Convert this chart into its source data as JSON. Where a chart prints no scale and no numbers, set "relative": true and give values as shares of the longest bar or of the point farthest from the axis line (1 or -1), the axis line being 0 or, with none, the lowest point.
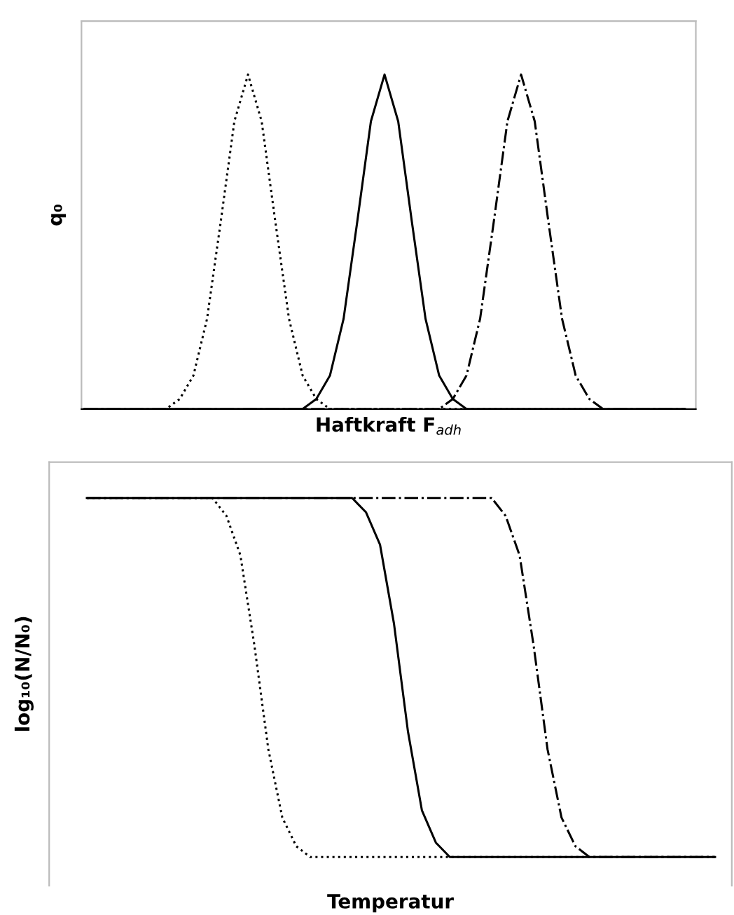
{
  "chart_data": [
    {
      "type": "line",
      "relative": true,
      "ylabel": "q₀",
      "xlabel": "Haftkraft F$_{adh}$",
      "tick_labels": false,
      "marker": "none",
      "categories": [
        null,
        null,
        null,
        null,
        null,
        null,
        null,
        null,
        null,
        null,
        null,
        null,
        null,
        null,
        null,
        null,
        null,
        null,
        null,
        null,
        null,
        null,
        null,
        null,
        null,
        null,
        null,
        null,
        null,
        null,
        null,
        null,
        null,
        null,
        null,
        null,
        null,
        null,
        null,
        null,
        null,
        null,
        null,
        null,
        null
      ],
      "series": [
        {
          "color": "#000000",
          "line_style": "dotted",
          "values": [
            0,
            0,
            0,
            0,
            0,
            0,
            0,
            0.03,
            0.1,
            0.27,
            0.56,
            0.86,
            1,
            0.86,
            0.56,
            0.27,
            0.1,
            0.03,
            0,
            0,
            0,
            0,
            0,
            0,
            0,
            0,
            0,
            0,
            0,
            0,
            0,
            0,
            0,
            0,
            0,
            0,
            0,
            0,
            0,
            0,
            0,
            0,
            0,
            0,
            0
          ]
        },
        {
          "color": "#000000",
          "line_style": "solid",
          "values": [
            0,
            0,
            0,
            0,
            0,
            0,
            0,
            0,
            0,
            0,
            0,
            0,
            0,
            0,
            0,
            0,
            0,
            0.03,
            0.1,
            0.27,
            0.56,
            0.86,
            1,
            0.86,
            0.56,
            0.27,
            0.1,
            0.03,
            0,
            0,
            0,
            0,
            0,
            0,
            0,
            0,
            0,
            0,
            0,
            0,
            0,
            0,
            0,
            0,
            0
          ]
        },
        {
          "color": "#000000",
          "line_style": "dashed",
          "values": [
            0,
            0,
            0,
            0,
            0,
            0,
            0,
            0,
            0,
            0,
            0,
            0,
            0,
            0,
            0,
            0,
            0,
            0,
            0,
            0,
            0,
            0,
            0,
            0,
            0,
            0,
            0,
            0.03,
            0.1,
            0.27,
            0.56,
            0.86,
            1,
            0.86,
            0.56,
            0.27,
            0.1,
            0.03,
            0,
            0,
            0,
            0,
            0,
            0,
            0
          ]
        }
      ]
    },
    {
      "type": "line",
      "relative": true,
      "ylabel": "log₁₀(N/N₀)",
      "xlabel": "Temperatur",
      "tick_labels": false,
      "marker": "none",
      "categories": [
        null,
        null,
        null,
        null,
        null,
        null,
        null,
        null,
        null,
        null,
        null,
        null,
        null,
        null,
        null,
        null,
        null,
        null,
        null,
        null,
        null,
        null,
        null,
        null,
        null,
        null,
        null,
        null,
        null,
        null,
        null,
        null,
        null,
        null,
        null,
        null,
        null,
        null,
        null,
        null,
        null,
        null,
        null,
        null,
        null,
        null
      ],
      "series": [
        {
          "color": "#000000",
          "line_style": "dotted",
          "values": [
            1,
            1,
            1,
            1,
            1,
            1,
            1,
            1,
            1,
            1,
            0.95,
            0.84,
            0.59,
            0.3,
            0.11,
            0.03,
            0,
            0,
            0,
            0,
            0,
            0,
            0,
            0,
            0,
            0,
            0,
            0,
            0,
            0,
            0,
            0,
            0,
            0,
            0,
            0,
            0,
            0,
            0,
            0,
            0,
            0,
            0,
            0,
            0,
            0
          ]
        },
        {
          "color": "#000000",
          "line_style": "solid",
          "values": [
            1,
            1,
            1,
            1,
            1,
            1,
            1,
            1,
            1,
            1,
            1,
            1,
            1,
            1,
            1,
            1,
            1,
            1,
            1,
            1,
            0.96,
            0.87,
            0.65,
            0.35,
            0.13,
            0.04,
            0,
            0,
            0,
            0,
            0,
            0,
            0,
            0,
            0,
            0,
            0,
            0,
            0,
            0,
            0,
            0,
            0,
            0,
            0,
            0
          ]
        },
        {
          "color": "#000000",
          "line_style": "dashed",
          "values": [
            1,
            1,
            1,
            1,
            1,
            1,
            1,
            1,
            1,
            1,
            1,
            1,
            1,
            1,
            1,
            1,
            1,
            1,
            1,
            1,
            1,
            1,
            1,
            1,
            1,
            1,
            1,
            1,
            1,
            1,
            0.95,
            0.84,
            0.59,
            0.3,
            0.11,
            0.03,
            0,
            0,
            0,
            0,
            0,
            0,
            0,
            0,
            0,
            0
          ]
        }
      ]
    }
  ]
}
